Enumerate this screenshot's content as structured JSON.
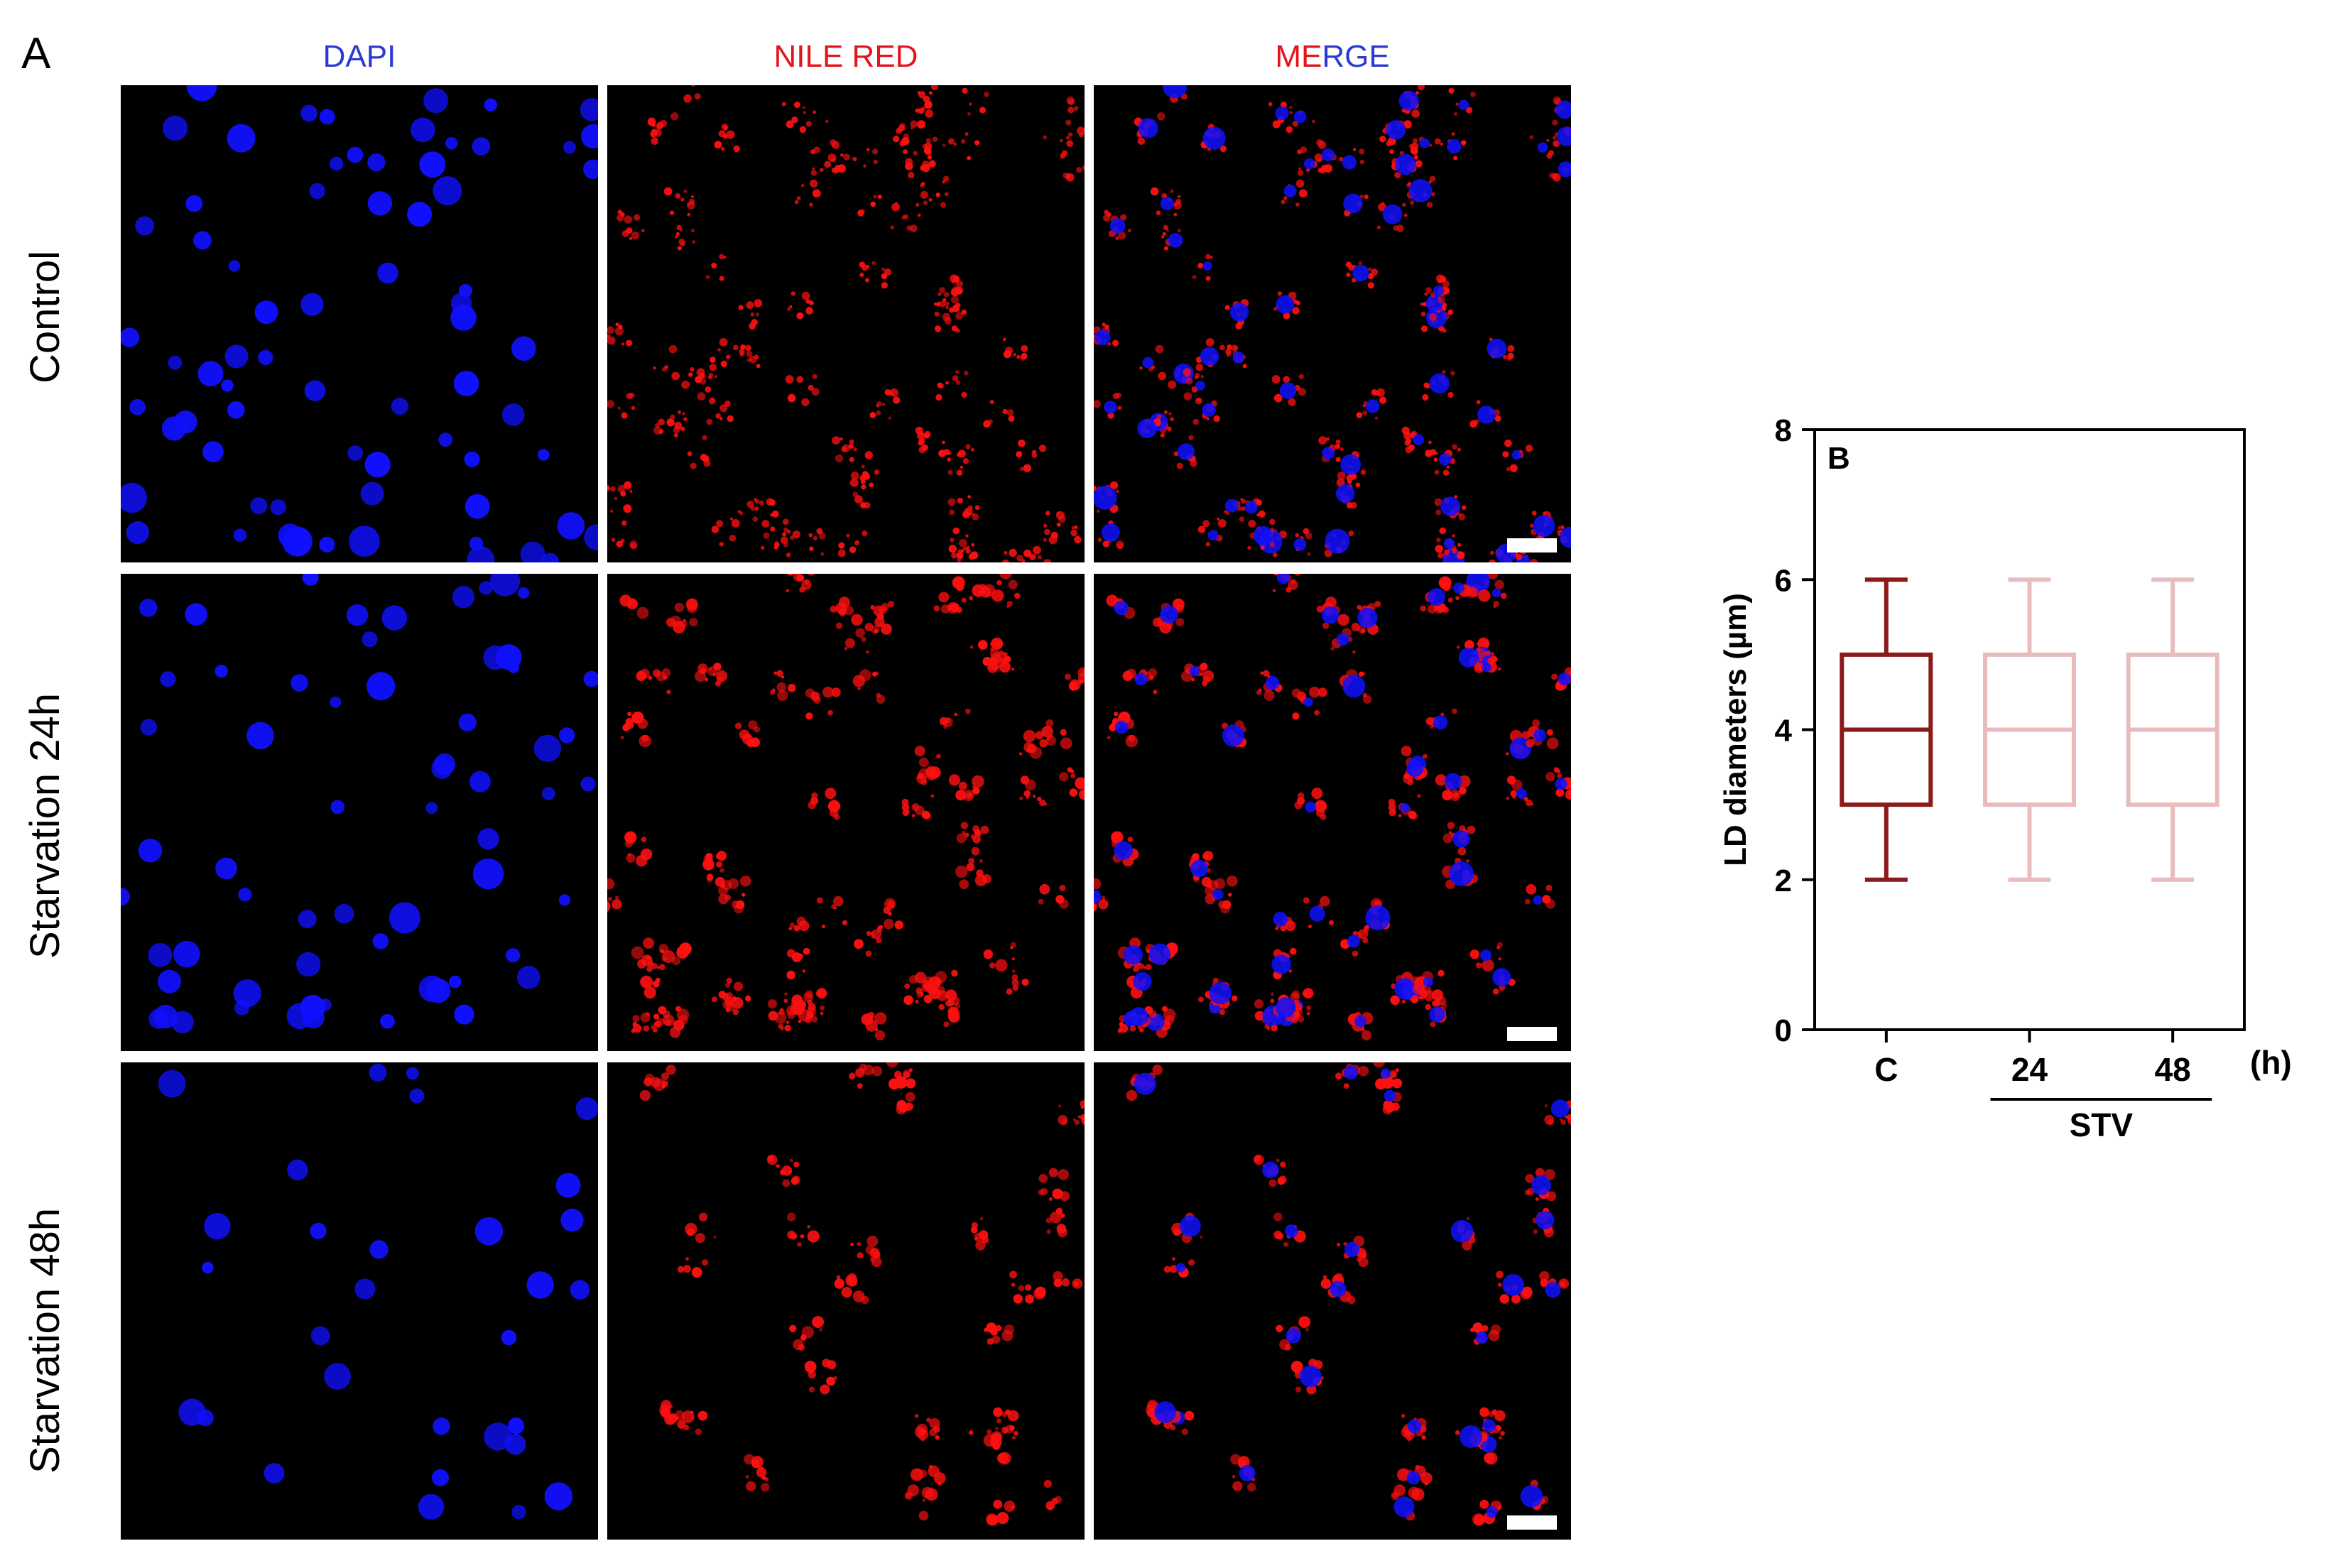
{
  "figure": {
    "panel_a_label": "A",
    "columns": {
      "dapi": "DAPI",
      "nile": "NILE RED",
      "merge_red": "ME",
      "merge_blue": "RGE"
    },
    "rows": [
      "Control",
      "Starvation 24h",
      "Starvation 48h"
    ],
    "colors": {
      "dapi": "#2b3bd1",
      "nile": "#e3151c",
      "cell_blue": "#1010ff",
      "cell_red": "#ff1010"
    }
  },
  "chart_data": {
    "type": "box",
    "panel_label": "B",
    "ylabel": "LD diameters (µm)",
    "ylim": [
      0,
      8
    ],
    "yticks": [
      "0",
      "2",
      "4",
      "6",
      "8"
    ],
    "categories": [
      "C",
      "24",
      "48"
    ],
    "group_label": "STV",
    "unit_label": "(h)",
    "boxes": [
      {
        "category": "C",
        "min": 2,
        "q1": 3,
        "median": 4,
        "q3": 5,
        "max": 6,
        "color": "#8b1a1a"
      },
      {
        "category": "24",
        "min": 2,
        "q1": 3,
        "median": 4,
        "q3": 5,
        "max": 6,
        "color": "#e8bcbc"
      },
      {
        "category": "48",
        "min": 2,
        "q1": 3,
        "median": 4,
        "q3": 5,
        "max": 6,
        "color": "#e8bcbc"
      }
    ]
  }
}
